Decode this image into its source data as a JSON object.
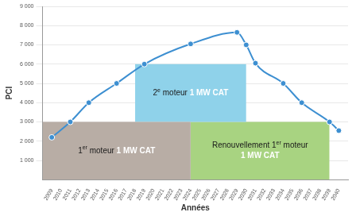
{
  "chart_data": {
    "type": "line",
    "x_label": "Années",
    "y_label": "PCI",
    "xlim": [
      2008,
      2041
    ],
    "xticks": [
      2009,
      2010,
      2011,
      2012,
      2013,
      2014,
      2015,
      2016,
      2017,
      2018,
      2019,
      2020,
      2021,
      2022,
      2023,
      2024,
      2025,
      2026,
      2027,
      2028,
      2029,
      2030,
      2031,
      2032,
      2033,
      2034,
      2035,
      2036,
      2037,
      2038,
      2039,
      2040
    ],
    "ylim": [
      0,
      9000
    ],
    "yticks": [
      {
        "value": 1000,
        "label": "1 000"
      },
      {
        "value": 2000,
        "label": "2 000"
      },
      {
        "value": 3000,
        "label": "3 000"
      },
      {
        "value": 4000,
        "label": "4 000"
      },
      {
        "value": 5000,
        "label": "5 000"
      },
      {
        "value": 6000,
        "label": "6 000"
      },
      {
        "value": 7000,
        "label": "7 000"
      },
      {
        "value": 8000,
        "label": "8 000"
      },
      {
        "value": 9000,
        "label": "9 000"
      }
    ],
    "grid": true,
    "x": [
      2009,
      2011,
      2013,
      2016,
      2019,
      2024,
      2029,
      2030,
      2031,
      2034,
      2036,
      2039,
      2040
    ],
    "values": [
      2200,
      3000,
      4000,
      5000,
      6000,
      7050,
      7650,
      7000,
      6050,
      5000,
      4000,
      3000,
      2550
    ],
    "color": "#3d8fd1",
    "marker": "circle",
    "blocks": [
      {
        "label": "1er moteur",
        "sublabel": "1 MW CAT",
        "from_year": 2008,
        "to_year": 2024,
        "from_pci": 0,
        "to_pci": 3000,
        "color": "#b8ada5"
      },
      {
        "label": "2e moteur",
        "sublabel": "1 MW CAT",
        "from_year": 2018,
        "to_year": 2030,
        "from_pci": 3000,
        "to_pci": 6000,
        "color": "#8fd2ea"
      },
      {
        "label": "Renouvellement 1er moteur",
        "sublabel": "1 MW CAT",
        "from_year": 2024,
        "to_year": 2039,
        "from_pci": 0,
        "to_pci": 3000,
        "color": "#a8d381"
      }
    ]
  }
}
